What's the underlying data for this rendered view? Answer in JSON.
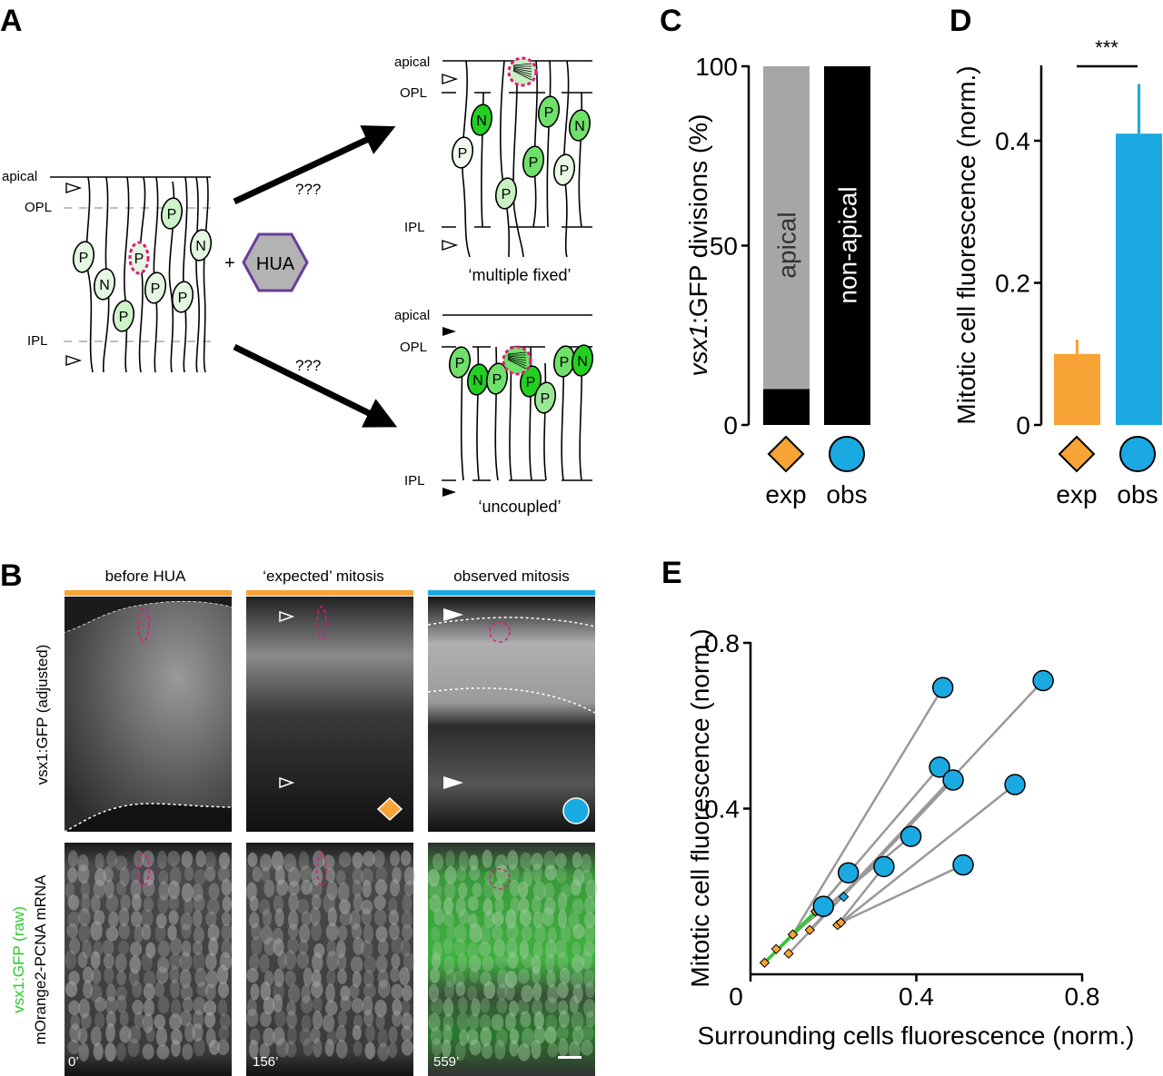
{
  "colors": {
    "exp": "#f7a335",
    "obs": "#1ba9e1",
    "apical_bar": "#a6a6a6",
    "non_apical_bar": "#000000",
    "gfp": "#2ec82e",
    "mitotic_outline": "#e0197d",
    "hua_outline": "#6a3d9a"
  },
  "panel_a": {
    "label": "A",
    "left": {
      "apical": "apical",
      "opl": "OPL",
      "ipl": "IPL",
      "cells": [
        "P",
        "N",
        "P",
        "P",
        "P",
        "P",
        "P",
        "N"
      ]
    },
    "plus": "+",
    "drug": "HUA",
    "question_top": "???",
    "question_bottom": "???",
    "top_right": {
      "apical": "apical",
      "opl": "OPL",
      "ipl": "IPL",
      "caption": "‘multiple fixed’",
      "cells": [
        "N",
        "P",
        "P",
        "P",
        "P",
        "P",
        "N"
      ]
    },
    "bottom_right": {
      "apical": "apical",
      "opl": "OPL",
      "ipl": "IPL",
      "caption": "‘uncoupled’",
      "cells": [
        "P",
        "N",
        "P",
        "P",
        "P",
        "P",
        "N"
      ]
    }
  },
  "panel_b": {
    "label": "B",
    "columns": [
      "before HUA",
      "‘expected’ mitosis",
      "observed mitosis"
    ],
    "row_top_label": "vsx1:GFP (adjusted)",
    "row_bottom_label_green": "vsx1:GFP (raw)",
    "row_bottom_label": "mOrange2-PCNA mRNA",
    "times": [
      "0’",
      "156’",
      "559’"
    ]
  },
  "chart_data": [
    {
      "panel": "C",
      "type": "bar",
      "stacked": true,
      "categories": [
        "exp",
        "obs"
      ],
      "series": [
        {
          "name": "non-apical",
          "values": [
            10,
            100
          ]
        },
        {
          "name": "apical",
          "values": [
            90,
            0
          ]
        }
      ],
      "bar_labels": {
        "apical": "apical",
        "non_apical": "non-apical"
      },
      "ylabel_italic": "vsx1",
      "ylabel_rest": ":GFP divisions (%)",
      "ylim": [
        0,
        100
      ],
      "yticks": [
        0,
        50,
        100
      ]
    },
    {
      "panel": "D",
      "type": "bar",
      "categories": [
        "exp",
        "obs"
      ],
      "values": [
        0.1,
        0.41
      ],
      "error_upper": [
        0.12,
        0.48
      ],
      "significance": "***",
      "ylabel": "Mitotic cell fluorescence (norm.)",
      "ylim": [
        0,
        0.5
      ],
      "yticks": [
        0,
        0.2,
        0.4
      ],
      "ytick_labels": [
        "0",
        "0.2",
        "0.4"
      ]
    },
    {
      "panel": "E",
      "type": "scatter",
      "xlabel": "Surrounding cells fluorescence (norm.)",
      "ylabel": "Mitotic cell fluorescence (norm.)",
      "xlim": [
        0,
        0.8
      ],
      "ylim": [
        0,
        0.8
      ],
      "xticks": [
        0,
        0.4,
        0.8
      ],
      "xtick_labels": [
        "0",
        "0.4",
        "0.8"
      ],
      "yticks": [
        0.4,
        0.8
      ],
      "ytick_labels": [
        "0.4",
        "0.8"
      ],
      "pairs": [
        {
          "exp": [
            0.102,
            0.096
          ],
          "obs": [
            0.464,
            0.692
          ]
        },
        {
          "exp": [
            0.143,
            0.107
          ],
          "obs": [
            0.706,
            0.709
          ]
        },
        {
          "exp": [
            0.157,
            0.152
          ],
          "obs": [
            0.456,
            0.5
          ]
        },
        {
          "exp": [
            0.092,
            0.05
          ],
          "obs": [
            0.489,
            0.469
          ]
        },
        {
          "exp": [
            0.218,
            0.125
          ],
          "obs": [
            0.638,
            0.458
          ]
        },
        {
          "exp": [
            0.102,
            0.096
          ],
          "obs": [
            0.387,
            0.333
          ]
        },
        {
          "exp": [
            0.21,
            0.119
          ],
          "obs": [
            0.322,
            0.26
          ]
        },
        {
          "exp": [
            0.218,
            0.125
          ],
          "obs": [
            0.513,
            0.264
          ]
        },
        {
          "exp": [
            0.157,
            0.152
          ],
          "obs": [
            0.236,
            0.245
          ]
        },
        {
          "exp": [
            0.034,
            0.028
          ],
          "obs": [
            0.176,
            0.164
          ]
        }
      ],
      "extra_exp_points": [
        [
          0.062,
          0.061
        ],
        [
          0.225,
          0.187
        ]
      ],
      "identity_segment": [
        [
          0.034,
          0.028
        ],
        [
          0.157,
          0.152
        ]
      ]
    }
  ]
}
